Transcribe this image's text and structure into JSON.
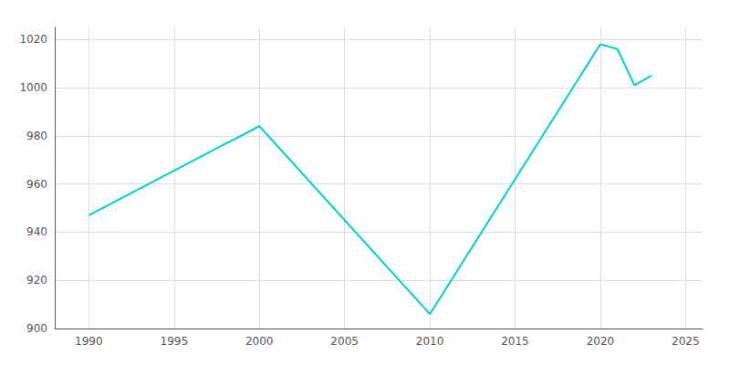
{
  "chart_data": {
    "type": "line",
    "x": [
      1990,
      2000,
      2010,
      2020,
      2021,
      2022,
      2023
    ],
    "values": [
      947,
      984,
      906,
      1018,
      1016,
      1001,
      1005
    ],
    "color": "#00CED1",
    "xlim": [
      1988,
      2026
    ],
    "xticks": [
      1990,
      1995,
      2000,
      2005,
      2010,
      2015,
      2020,
      2025
    ],
    "ylim": [
      900,
      1025
    ],
    "yticks": [
      900,
      920,
      940,
      960,
      980,
      1000,
      1020
    ],
    "grid": true
  }
}
